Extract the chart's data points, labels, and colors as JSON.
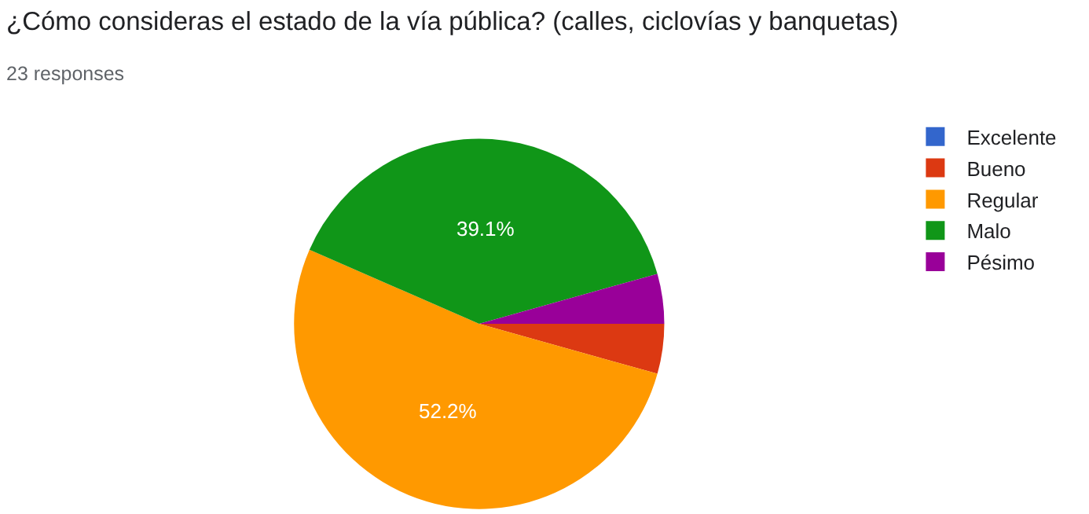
{
  "chart_data": {
    "type": "pie",
    "title": "¿Cómo consideras el estado de la vía pública? (calles, ciclovías y banquetas)",
    "subtitle": "23 responses",
    "categories": [
      "Excelente",
      "Bueno",
      "Regular",
      "Malo",
      "Pésimo"
    ],
    "values": [
      0,
      4.35,
      52.2,
      39.1,
      4.35
    ],
    "colors": [
      "#3366cc",
      "#dc3912",
      "#ff9900",
      "#109618",
      "#990099"
    ],
    "value_labels": [
      null,
      null,
      "52.2%",
      "39.1%",
      null
    ],
    "legend": "right"
  }
}
